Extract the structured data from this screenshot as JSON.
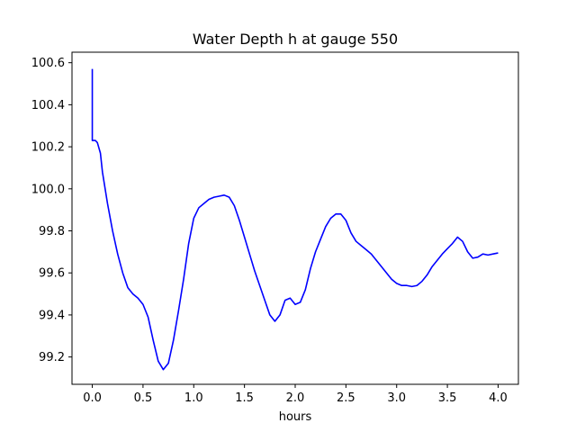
{
  "chart_data": {
    "type": "line",
    "title": "Water Depth h at gauge 550",
    "xlabel": "hours",
    "ylabel": "",
    "xlim": [
      -0.2,
      4.2
    ],
    "ylim": [
      99.07,
      100.65
    ],
    "xticks": [
      0.0,
      0.5,
      1.0,
      1.5,
      2.0,
      2.5,
      3.0,
      3.5,
      4.0
    ],
    "xtick_labels": [
      "0.0",
      "0.5",
      "1.0",
      "1.5",
      "2.0",
      "2.5",
      "3.0",
      "3.5",
      "4.0"
    ],
    "yticks": [
      99.2,
      99.4,
      99.6,
      99.8,
      100.0,
      100.2,
      100.4,
      100.6
    ],
    "ytick_labels": [
      "99.2",
      "99.4",
      "99.6",
      "99.8",
      "100.0",
      "100.2",
      "100.4",
      "100.6"
    ],
    "grid": false,
    "series": [
      {
        "color": "#0000ff",
        "x": [
          0.0,
          0.0,
          0.03,
          0.05,
          0.08,
          0.1,
          0.15,
          0.2,
          0.25,
          0.3,
          0.35,
          0.4,
          0.45,
          0.5,
          0.55,
          0.6,
          0.65,
          0.7,
          0.75,
          0.8,
          0.85,
          0.9,
          0.95,
          1.0,
          1.05,
          1.1,
          1.15,
          1.2,
          1.25,
          1.3,
          1.35,
          1.4,
          1.45,
          1.5,
          1.55,
          1.6,
          1.65,
          1.7,
          1.75,
          1.8,
          1.85,
          1.9,
          1.95,
          2.0,
          2.05,
          2.1,
          2.15,
          2.2,
          2.25,
          2.3,
          2.35,
          2.4,
          2.45,
          2.5,
          2.55,
          2.6,
          2.65,
          2.7,
          2.75,
          2.8,
          2.85,
          2.9,
          2.95,
          3.0,
          3.05,
          3.1,
          3.15,
          3.2,
          3.25,
          3.3,
          3.35,
          3.4,
          3.45,
          3.5,
          3.55,
          3.6,
          3.65,
          3.7,
          3.75,
          3.8,
          3.85,
          3.9,
          3.95,
          4.0
        ],
        "y": [
          100.57,
          100.23,
          100.23,
          100.22,
          100.17,
          100.08,
          99.93,
          99.8,
          99.69,
          99.6,
          99.53,
          99.5,
          99.48,
          99.45,
          99.39,
          99.28,
          99.18,
          99.14,
          99.17,
          99.28,
          99.42,
          99.57,
          99.74,
          99.86,
          99.91,
          99.93,
          99.95,
          99.96,
          99.965,
          99.97,
          99.96,
          99.92,
          99.85,
          99.77,
          99.69,
          99.61,
          99.54,
          99.47,
          99.4,
          99.37,
          99.4,
          99.47,
          99.48,
          99.45,
          99.46,
          99.52,
          99.62,
          99.7,
          99.76,
          99.82,
          99.86,
          99.88,
          99.88,
          99.85,
          99.79,
          99.75,
          99.73,
          99.71,
          99.69,
          99.66,
          99.63,
          99.6,
          99.57,
          99.55,
          99.54,
          99.54,
          99.535,
          99.54,
          99.56,
          99.59,
          99.63,
          99.66,
          99.69,
          99.715,
          99.74,
          99.77,
          99.75,
          99.7,
          99.67,
          99.675,
          99.69,
          99.685,
          99.69,
          99.695
        ]
      }
    ]
  }
}
